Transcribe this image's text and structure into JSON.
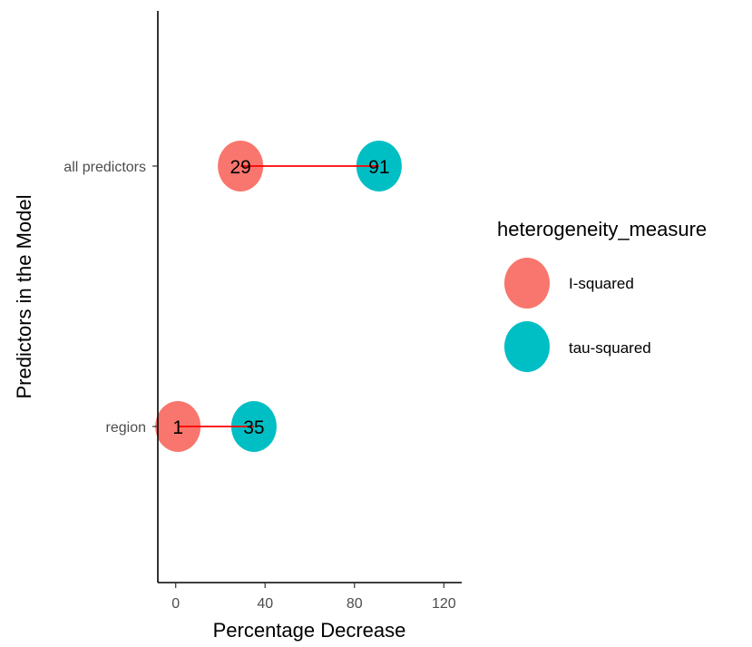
{
  "chart_data": {
    "type": "dumbbell",
    "categories": [
      "all predictors",
      "region"
    ],
    "series": [
      {
        "name": "I-squared",
        "color": "#F8766D",
        "values": [
          29,
          1
        ]
      },
      {
        "name": "tau-squared",
        "color": "#00BFC4",
        "values": [
          91,
          35
        ]
      }
    ],
    "point_labels": [
      [
        "29",
        "91"
      ],
      [
        "1",
        "35"
      ]
    ],
    "segment_color": "#FF0000",
    "xlabel": "Percentage Decrease",
    "ylabel": "Predictors in the Model",
    "xlim": [
      -8,
      128
    ],
    "xticks": [
      "0",
      "40",
      "80",
      "120"
    ],
    "xtick_values": [
      0,
      40,
      80,
      120
    ],
    "legend": {
      "title": "heterogeneity_measure",
      "position": "right",
      "labels": [
        "I-squared",
        "tau-squared"
      ]
    },
    "grid": false
  }
}
